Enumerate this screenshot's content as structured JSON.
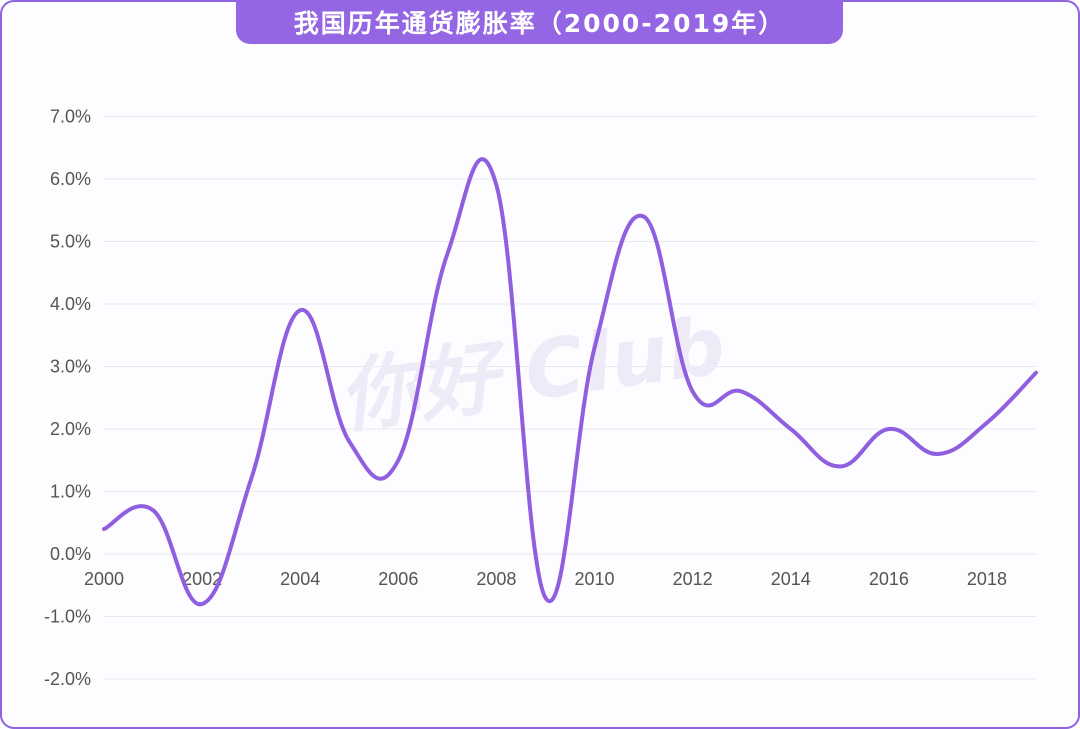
{
  "chart_data": {
    "type": "line",
    "title": "我国历年通货膨胀率（2000-2019年）",
    "xlabel": "",
    "ylabel": "",
    "x": [
      2000,
      2001,
      2002,
      2003,
      2004,
      2005,
      2006,
      2007,
      2008,
      2009,
      2010,
      2011,
      2012,
      2013,
      2014,
      2015,
      2016,
      2017,
      2018,
      2019
    ],
    "series": [
      {
        "values": [
          0.4,
          0.7,
          -0.8,
          1.2,
          3.9,
          1.8,
          1.5,
          4.8,
          5.9,
          -0.7,
          3.3,
          5.4,
          2.6,
          2.6,
          2.0,
          1.4,
          2.0,
          1.6,
          2.1,
          2.9
        ]
      }
    ],
    "xlim": [
      2000,
      2019
    ],
    "ylim": [
      -2.0,
      7.0
    ],
    "x_ticks": [
      "2000",
      "2002",
      "2004",
      "2006",
      "2008",
      "2010",
      "2012",
      "2014",
      "2016",
      "2018"
    ],
    "y_ticks": [
      "7.0%",
      "6.0%",
      "5.0%",
      "4.0%",
      "3.0%",
      "2.0%",
      "1.0%",
      "0.0%",
      "-1.0%",
      "-2.0%"
    ],
    "grid": true,
    "colors": {
      "line": "#8f5fe0",
      "grid": "#e8e8f4",
      "title_bg": "#9466e3"
    }
  },
  "watermark": "你好 Club"
}
